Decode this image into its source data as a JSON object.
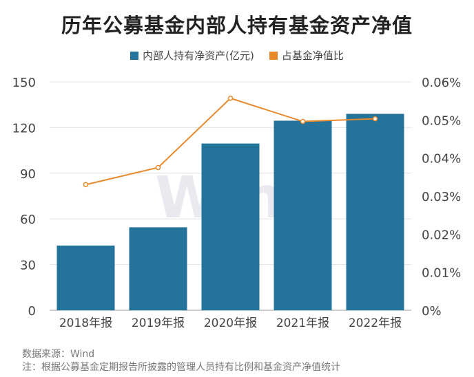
{
  "chart_data": {
    "type": "bar",
    "title": "历年公募基金内部人持有基金资产净值",
    "categories": [
      "2018年报",
      "2019年报",
      "2020年报",
      "2021年报",
      "2022年报"
    ],
    "series": [
      {
        "name": "内部人持有净资产(亿元)",
        "type": "bar",
        "axis": "left",
        "color": "#23739b",
        "values": [
          42.5,
          54.5,
          109.5,
          124.5,
          129.0
        ]
      },
      {
        "name": "占基金净值比",
        "type": "line",
        "axis": "right",
        "color": "#e8892b",
        "values": [
          0.033,
          0.0375,
          0.0557,
          0.0496,
          0.0503
        ]
      }
    ],
    "y_left": {
      "ylim": [
        0,
        150
      ],
      "ticks": [
        "0",
        "30",
        "60",
        "90",
        "120",
        "150"
      ],
      "tick_values": [
        0,
        30,
        60,
        90,
        120,
        150
      ]
    },
    "y_right": {
      "ylim": [
        0,
        0.06
      ],
      "ticks": [
        "0%",
        "0.01%",
        "0.02%",
        "0.03%",
        "0.04%",
        "0.05%",
        "0.06%"
      ],
      "tick_values": [
        0,
        0.01,
        0.02,
        0.03,
        0.04,
        0.05,
        0.06
      ]
    },
    "grid": true,
    "legend_position": "top-center"
  },
  "watermark": "Wind",
  "source": "数据来源：Wind",
  "note": "注：根据公募基金定期报告所披露的管理人员持有比例和基金资产净值统计"
}
